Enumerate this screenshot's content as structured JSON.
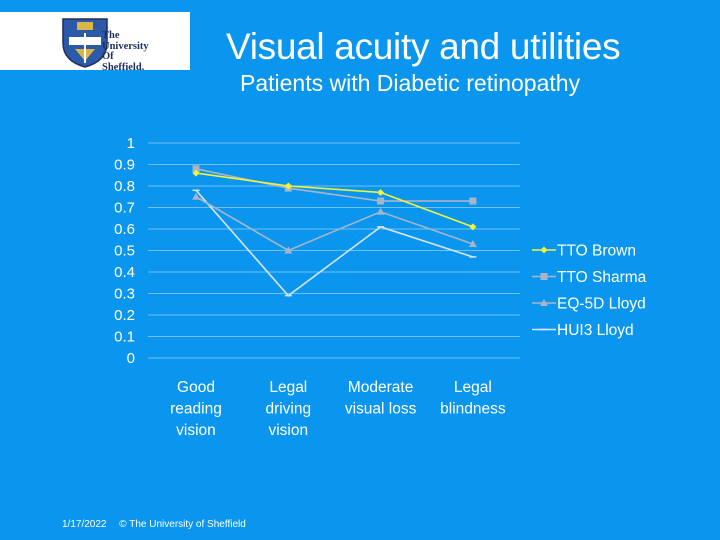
{
  "logo": {
    "lines": [
      "The",
      "University",
      "Of",
      "Sheffield."
    ]
  },
  "slide": {
    "title": "Visual acuity and utilities",
    "subtitle": "Patients with Diabetic retinopathy"
  },
  "footer": {
    "date": "1/17/2022",
    "copyright": "© The University of Sheffield"
  },
  "chart_data": {
    "type": "line",
    "title": "",
    "xlabel": "",
    "ylabel": "",
    "ylim": [
      0,
      1
    ],
    "yticks": [
      "0",
      "0.1",
      "0.2",
      "0.3",
      "0.4",
      "0.5",
      "0.6",
      "0.7",
      "0.8",
      "0.9",
      "1"
    ],
    "categories": [
      [
        "Good",
        "reading",
        "vision"
      ],
      [
        "Legal",
        "driving",
        "vision"
      ],
      [
        "Moderate",
        "visual loss"
      ],
      [
        "Legal",
        "blindness"
      ]
    ],
    "legend_position": "right",
    "series": [
      {
        "name": "TTO Brown",
        "marker": "diamond",
        "color": "#f2f23a",
        "values": [
          0.86,
          0.8,
          0.77,
          0.61
        ]
      },
      {
        "name": "TTO Sharma",
        "marker": "square",
        "color": "#a9b4c8",
        "values": [
          0.88,
          0.79,
          0.73,
          0.73
        ]
      },
      {
        "name": "EQ-5D Lloyd",
        "marker": "triangle",
        "color": "#a9b4c8",
        "values": [
          0.75,
          0.5,
          0.68,
          0.53
        ]
      },
      {
        "name": "HUI3 Lloyd",
        "marker": "cross",
        "color": "#d8e4f2",
        "values": [
          0.78,
          0.29,
          0.61,
          0.47
        ]
      }
    ]
  }
}
